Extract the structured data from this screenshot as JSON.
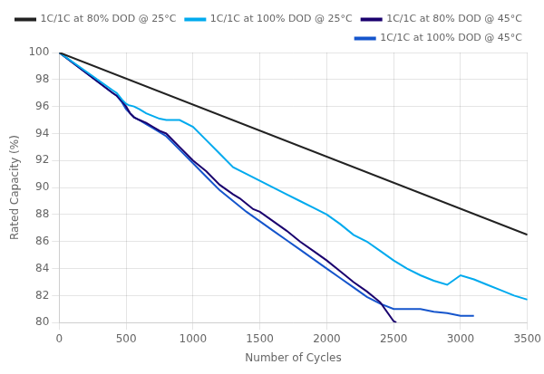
{
  "chart_data": {
    "type": "line",
    "xlabel": "Number of Cycles",
    "ylabel": "Rated Capacity (%)",
    "xlim": [
      0,
      3500
    ],
    "ylim": [
      80,
      100
    ],
    "xticks": [
      0,
      500,
      1000,
      1500,
      2000,
      2500,
      3000,
      3500
    ],
    "yticks": [
      80,
      82,
      84,
      86,
      88,
      90,
      92,
      94,
      96,
      98,
      100
    ],
    "grid": true,
    "legend": "upper right",
    "series": [
      {
        "name": "1C/1C at 80% DOD @ 25°C",
        "color": "#222222",
        "x": [
          0,
          3500
        ],
        "values": [
          100,
          86.5
        ]
      },
      {
        "name": "1C/1C at 100% DOD @ 25°C",
        "color": "#00aaee",
        "x": [
          0,
          400,
          430,
          470,
          500,
          520,
          560,
          600,
          650,
          700,
          750,
          800,
          850,
          900,
          1000,
          1100,
          1200,
          1300,
          1400,
          1500,
          1600,
          1700,
          1800,
          1900,
          2000,
          2100,
          2200,
          2300,
          2400,
          2500,
          2600,
          2700,
          2800,
          2900,
          3000,
          3100,
          3200,
          3300,
          3400,
          3500
        ],
        "values": [
          100,
          97.2,
          97.0,
          96.5,
          96.2,
          96.1,
          96.0,
          95.8,
          95.5,
          95.3,
          95.1,
          95.0,
          95.0,
          95.0,
          94.5,
          93.5,
          92.5,
          91.5,
          91.0,
          90.5,
          90.0,
          89.5,
          89.0,
          88.5,
          88.0,
          87.3,
          86.5,
          86.0,
          85.3,
          84.6,
          84.0,
          83.5,
          83.1,
          82.8,
          83.5,
          83.2,
          82.8,
          82.4,
          82.0,
          81.7
        ]
      },
      {
        "name": "1C/1C at 80% DOD @ 45°C",
        "color": "#1a006e",
        "x": [
          0,
          400,
          430,
          470,
          500,
          530,
          560,
          600,
          650,
          700,
          750,
          800,
          900,
          1000,
          1100,
          1200,
          1300,
          1350,
          1400,
          1450,
          1500,
          1600,
          1700,
          1800,
          1900,
          2000,
          2100,
          2200,
          2300,
          2400,
          2500,
          2520
        ],
        "values": [
          100,
          97.0,
          96.8,
          96.4,
          96.0,
          95.5,
          95.2,
          95.0,
          94.8,
          94.5,
          94.2,
          94.0,
          93.0,
          92.0,
          91.2,
          90.2,
          89.5,
          89.2,
          88.8,
          88.4,
          88.2,
          87.5,
          86.8,
          86.0,
          85.3,
          84.6,
          83.8,
          83.0,
          82.3,
          81.5,
          80.1,
          80.0
        ]
      },
      {
        "name": "1C/1C at 100% DOD @ 45°C",
        "color": "#1555cc",
        "x": [
          0,
          400,
          430,
          470,
          500,
          530,
          560,
          600,
          650,
          700,
          750,
          800,
          900,
          1000,
          1100,
          1200,
          1300,
          1400,
          1500,
          1600,
          1700,
          1800,
          1900,
          2000,
          2100,
          2200,
          2300,
          2400,
          2500,
          2600,
          2700,
          2800,
          2900,
          3000,
          3050,
          3100
        ],
        "values": [
          100,
          97.0,
          96.8,
          96.3,
          95.8,
          95.5,
          95.2,
          95.0,
          94.7,
          94.4,
          94.1,
          93.8,
          92.8,
          91.8,
          90.8,
          89.8,
          89.0,
          88.2,
          87.5,
          86.8,
          86.1,
          85.4,
          84.7,
          84.0,
          83.3,
          82.6,
          81.9,
          81.4,
          81.0,
          81.0,
          81.0,
          80.8,
          80.7,
          80.5,
          80.5,
          80.5
        ]
      }
    ]
  }
}
